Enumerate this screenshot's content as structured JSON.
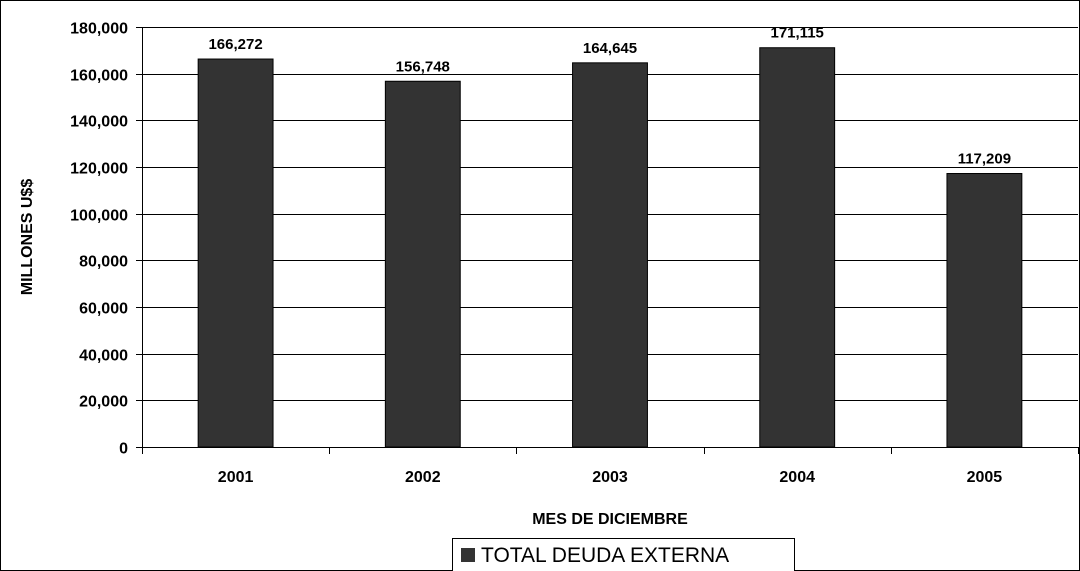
{
  "chart_data": {
    "type": "bar",
    "categories": [
      "2001",
      "2002",
      "2003",
      "2004",
      "2005"
    ],
    "series": [
      {
        "name": "TOTAL DEUDA EXTERNA",
        "values": [
          166272,
          156748,
          164645,
          171115,
          117209
        ]
      }
    ],
    "data_labels": [
      "166,272",
      "156,748",
      "164,645",
      "171,115",
      "117,209"
    ],
    "y_ticks": [
      "0",
      "20,000",
      "40,000",
      "60,000",
      "80,000",
      "100,000",
      "120,000",
      "140,000",
      "160,000",
      "180,000"
    ],
    "ylim": [
      0,
      180000
    ],
    "xlabel": "MES DE DICIEMBRE",
    "ylabel": "MILLONES U$$",
    "grid": true,
    "legend": "bottom-center",
    "colors": {
      "bar": "#333333",
      "grid": "#000000",
      "background": "#ffffff"
    }
  }
}
